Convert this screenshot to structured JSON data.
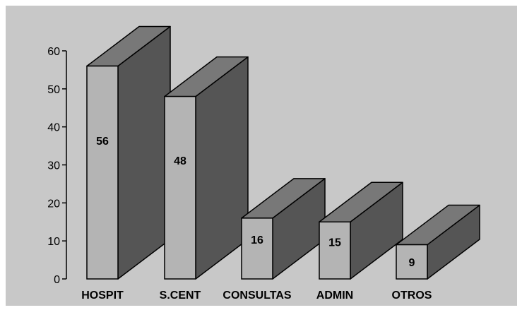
{
  "chart_data": {
    "type": "bar",
    "style": "3d",
    "categories": [
      "HOSPIT",
      "S.CENT",
      "CONSULTAS",
      "ADMIN",
      "OTROS"
    ],
    "values": [
      56,
      48,
      16,
      15,
      9
    ],
    "data_labels": [
      "56",
      "48",
      "16",
      "15",
      "9"
    ],
    "title": "",
    "xlabel": "",
    "ylabel": "",
    "ylim": [
      0,
      60
    ],
    "yticks": [
      0,
      10,
      20,
      30,
      40,
      50,
      60
    ],
    "ytick_labels": [
      "0",
      "10",
      "20",
      "30",
      "40",
      "50",
      "60"
    ],
    "grid": false,
    "legend": "none",
    "colors": {
      "background": "#c8c8c8",
      "bar_front": "#b4b4b4",
      "bar_top": "#787878",
      "bar_side": "#555555",
      "outline": "#000000"
    }
  }
}
